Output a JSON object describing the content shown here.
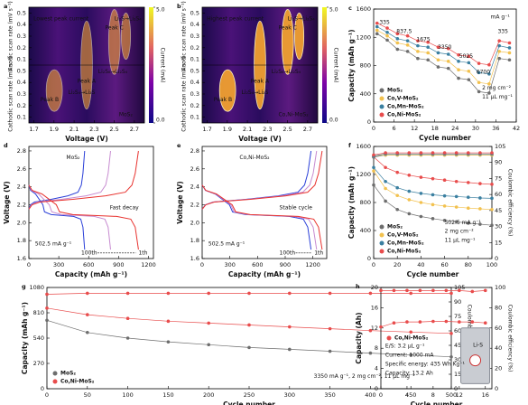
{
  "chart_data": [
    {
      "type": "heatmap",
      "label": "a",
      "xlabel": "Voltage (V)",
      "ylabels": [
        "Anodic scan rate (mV s⁻¹)",
        "Cathodic scan rate (mV s⁻¹)"
      ],
      "xlim": [
        1.65,
        2.8
      ],
      "xticks": [
        1.7,
        1.9,
        2.1,
        2.3,
        2.5,
        2.7
      ],
      "ylim": [
        0.05,
        0.55
      ],
      "yticks": [
        0.1,
        0.2,
        0.3,
        0.4,
        0.5
      ],
      "clim": [
        0,
        5
      ],
      "cticks": [
        {
          "value": 0,
          "label": "0.0"
        },
        {
          "value": 5,
          "label": "5.0"
        }
      ],
      "clabel": "Current (mA)",
      "annotations": [
        "Lowest peak current",
        "Peak C",
        "Peak A",
        "Peak B",
        "MoS₂",
        "Li₂S→Li₂S₄",
        "Li₂S₄→Li₂S",
        "Li₂S₈→Li₂S₄"
      ]
    },
    {
      "type": "heatmap",
      "label": "b",
      "xlabel": "Voltage (V)",
      "ylabels": [
        "Anodic scan rate (mV s⁻¹)",
        "Cathodic scan rate (mV s⁻¹)"
      ],
      "xlim": [
        1.65,
        2.8
      ],
      "xticks": [
        1.7,
        1.9,
        2.1,
        2.3,
        2.5,
        2.7
      ],
      "ylim": [
        0.05,
        0.55
      ],
      "yticks": [
        0.1,
        0.2,
        0.3,
        0.4,
        0.5
      ],
      "clim": [
        0,
        5
      ],
      "cticks": [
        {
          "value": 0,
          "label": "0.0"
        },
        {
          "value": 5,
          "label": "5.0"
        }
      ],
      "clabel": "Current (mA)",
      "annotations": [
        "Highest peak current",
        "Peak C",
        "Peak A",
        "Peak B",
        "Co,Ni-MoS₂",
        "Li₂S→Li₂S₄",
        "Li₂S₄→Li₂S",
        "Li₂S₈→Li₂S₄"
      ]
    },
    {
      "type": "line",
      "label": "c",
      "markers": true,
      "legend": "lower left",
      "xlabel": "Cycle number",
      "ylabel": "Capacity (mAh g⁻¹)",
      "xlim": [
        0,
        42
      ],
      "xticks": [
        0,
        6,
        12,
        18,
        24,
        30,
        36,
        42
      ],
      "ylim": [
        0,
        1600
      ],
      "yticks": [
        0,
        400,
        800,
        1200,
        1600
      ],
      "x": [
        1,
        4,
        7,
        10,
        13,
        16,
        19,
        22,
        25,
        28,
        31,
        34,
        37,
        40
      ],
      "series": [
        {
          "name": "MoS₂",
          "color": "#6d6d6d",
          "values": [
            1250,
            1160,
            1030,
            1000,
            900,
            880,
            780,
            760,
            620,
            600,
            430,
            410,
            900,
            880
          ]
        },
        {
          "name": "Co,V-MoS₂",
          "color": "#f2c14e",
          "values": [
            1300,
            1220,
            1120,
            1090,
            1000,
            980,
            880,
            860,
            740,
            720,
            560,
            540,
            1000,
            980
          ]
        },
        {
          "name": "Co,Mn-MoS₂",
          "color": "#3a7fa0",
          "values": [
            1350,
            1270,
            1180,
            1150,
            1080,
            1060,
            980,
            960,
            860,
            840,
            700,
            680,
            1080,
            1050
          ]
        },
        {
          "name": "Co,Ni-MoS₂",
          "color": "#e84c4c",
          "values": [
            1400,
            1330,
            1250,
            1220,
            1150,
            1130,
            1060,
            1040,
            950,
            930,
            830,
            810,
            1150,
            1120
          ]
        }
      ],
      "annotations": [
        "335",
        "837.5",
        "1675",
        "3350",
        "5025",
        "6700",
        "335",
        "mA g⁻¹",
        "2 mg cm⁻²",
        "11 μL mg⁻¹"
      ]
    },
    {
      "type": "line",
      "label": "d",
      "xlabel": "Capacity (mAh g⁻¹)",
      "ylabel": "Voltage (V)",
      "xlim": [
        0,
        1250
      ],
      "xticks": [
        0,
        300,
        600,
        900,
        1200
      ],
      "ylim": [
        1.6,
        2.85
      ],
      "yticks": [
        1.6,
        1.8,
        {
          "value": 2,
          "label": "2.0"
        },
        2.2,
        2.4,
        2.6,
        2.8
      ],
      "series": [
        {
          "color": "#2a3fd8",
          "x": [
            0,
            17,
            67,
            140,
            157,
            224,
            336,
            448,
            521,
            543,
            560
          ],
          "values": [
            2.42,
            2.36,
            2.32,
            2.2,
            2.12,
            2.09,
            2.08,
            2.07,
            2.04,
            1.95,
            1.7
          ]
        },
        {
          "color": "#2a3fd8",
          "x": [
            0,
            17,
            56,
            224,
            392,
            493,
            526,
            543,
            560
          ],
          "values": [
            2.15,
            2.2,
            2.23,
            2.26,
            2.3,
            2.34,
            2.42,
            2.55,
            2.8
          ]
        },
        {
          "color": "#c78bd0",
          "x": [
            0,
            25,
            98,
            205,
            230,
            328,
            492,
            656,
            763,
            795,
            820
          ],
          "values": [
            2.42,
            2.36,
            2.32,
            2.2,
            2.12,
            2.09,
            2.08,
            2.07,
            2.04,
            1.95,
            1.7
          ]
        },
        {
          "color": "#c78bd0",
          "x": [
            0,
            25,
            82,
            328,
            574,
            722,
            771,
            795,
            820
          ],
          "values": [
            2.15,
            2.2,
            2.23,
            2.26,
            2.3,
            2.34,
            2.42,
            2.55,
            2.8
          ]
        },
        {
          "color": "#e8322e",
          "x": [
            0,
            33,
            132,
            275,
            308,
            440,
            660,
            880,
            1023,
            1067,
            1100
          ],
          "values": [
            2.42,
            2.36,
            2.32,
            2.2,
            2.12,
            2.09,
            2.08,
            2.07,
            2.04,
            1.95,
            1.7
          ]
        },
        {
          "color": "#e8322e",
          "x": [
            0,
            33,
            110,
            440,
            770,
            968,
            1034,
            1067,
            1100
          ],
          "values": [
            2.15,
            2.2,
            2.23,
            2.26,
            2.3,
            2.34,
            2.42,
            2.55,
            2.8
          ]
        }
      ],
      "annotations": [
        "MoS₂",
        "Fast decay",
        "502.5 mA g⁻¹",
        "100th",
        "1th"
      ]
    },
    {
      "type": "line",
      "label": "e",
      "xlabel": "Capacity (mAh g⁻¹)",
      "ylabel": "Voltage (V)",
      "xlim": [
        0,
        1350
      ],
      "xticks": [
        0,
        300,
        600,
        900,
        1200
      ],
      "ylim": [
        1.6,
        2.85
      ],
      "yticks": [
        1.6,
        1.8,
        {
          "value": 2,
          "label": "2.0"
        },
        2.2,
        2.4,
        2.6,
        2.8
      ],
      "series": [
        {
          "color": "#2a3fd8",
          "x": [
            0,
            35,
            142,
            295,
            330,
            472,
            708,
            944,
            1097,
            1145,
            1180
          ],
          "values": [
            2.42,
            2.36,
            2.32,
            2.2,
            2.12,
            2.09,
            2.08,
            2.07,
            2.04,
            1.95,
            1.7
          ]
        },
        {
          "color": "#2a3fd8",
          "x": [
            0,
            35,
            118,
            472,
            826,
            1038,
            1109,
            1145,
            1180
          ],
          "values": [
            2.15,
            2.2,
            2.23,
            2.26,
            2.3,
            2.34,
            2.42,
            2.55,
            2.8
          ]
        },
        {
          "color": "#c78bd0",
          "x": [
            0,
            37,
            149,
            310,
            347,
            496,
            744,
            992,
            1153,
            1203,
            1240
          ],
          "values": [
            2.42,
            2.36,
            2.32,
            2.2,
            2.12,
            2.09,
            2.08,
            2.07,
            2.04,
            1.95,
            1.7
          ]
        },
        {
          "color": "#c78bd0",
          "x": [
            0,
            37,
            124,
            496,
            868,
            1091,
            1166,
            1203,
            1240
          ],
          "values": [
            2.15,
            2.2,
            2.23,
            2.26,
            2.3,
            2.34,
            2.42,
            2.55,
            2.8
          ]
        },
        {
          "color": "#e8322e",
          "x": [
            0,
            39,
            156,
            325,
            364,
            520,
            780,
            1040,
            1209,
            1261,
            1300
          ],
          "values": [
            2.42,
            2.36,
            2.32,
            2.2,
            2.12,
            2.09,
            2.08,
            2.07,
            2.04,
            1.95,
            1.7
          ]
        },
        {
          "color": "#e8322e",
          "x": [
            0,
            39,
            130,
            520,
            910,
            1144,
            1222,
            1261,
            1300
          ],
          "values": [
            2.15,
            2.2,
            2.23,
            2.26,
            2.3,
            2.34,
            2.42,
            2.55,
            2.8
          ]
        }
      ],
      "annotations": [
        "Co,Ni-MoS₂",
        "Stable cycle",
        "502.5 mA g⁻¹",
        "100th",
        "1th"
      ]
    },
    {
      "type": "line",
      "label": "f",
      "markers": true,
      "legend": "lower left",
      "xlabel": "Cycle number",
      "ylabel": "Capacity (mAh g⁻¹)",
      "y2label": "Coulombic efficiency (%)",
      "xlim": [
        0,
        100
      ],
      "xticks": [
        0,
        20,
        40,
        60,
        80,
        100
      ],
      "ylim": [
        0,
        1600
      ],
      "yticks": [
        0,
        400,
        800,
        1200,
        1600
      ],
      "y2lim": [
        0,
        105
      ],
      "y2ticks": [
        0,
        15,
        30,
        45,
        60,
        75,
        90,
        105
      ],
      "x": [
        0,
        10,
        20,
        30,
        40,
        50,
        60,
        70,
        80,
        90,
        100
      ],
      "series": [
        {
          "name": "MoS₂",
          "color": "#6d6d6d",
          "values": [
            1050,
            820,
            700,
            640,
            600,
            570,
            545,
            525,
            505,
            490,
            475
          ]
        },
        {
          "name": "Co,V-MoS₂",
          "color": "#f2c14e",
          "values": [
            1250,
            1000,
            900,
            840,
            800,
            770,
            750,
            735,
            720,
            710,
            700
          ]
        },
        {
          "name": "Co,Mn-MoS₂",
          "color": "#3a7fa0",
          "values": [
            1300,
            1100,
            1010,
            960,
            930,
            910,
            895,
            885,
            875,
            865,
            860
          ]
        },
        {
          "name": "Co,Ni-MoS₂",
          "color": "#e84c4c",
          "values": [
            1450,
            1300,
            1230,
            1190,
            1160,
            1140,
            1120,
            1100,
            1085,
            1070,
            1060
          ]
        },
        {
          "color": "#6d6d6d",
          "axis": "y2",
          "values": [
            95,
            97,
            97,
            97,
            97,
            97,
            97,
            97,
            97,
            97,
            97
          ]
        },
        {
          "color": "#f2c14e",
          "axis": "y2",
          "values": [
            96,
            97,
            97,
            97,
            97,
            97,
            97,
            97,
            97,
            97,
            97
          ]
        },
        {
          "color": "#3a7fa0",
          "axis": "y2",
          "values": [
            96,
            98,
            98,
            98,
            98,
            98,
            98,
            98,
            98,
            98,
            98
          ]
        },
        {
          "color": "#e84c4c",
          "axis": "y2",
          "values": [
            97,
            99,
            99,
            99,
            99,
            99,
            99,
            99,
            99,
            99,
            99
          ]
        }
      ],
      "annotations": [
        "502.5 mA g⁻¹",
        "2 mg cm⁻²",
        "11 μL mg⁻¹"
      ]
    },
    {
      "type": "line",
      "label": "g",
      "markers": true,
      "legend": "lower left",
      "xlabel": "Cycle number",
      "ylabel": "Capacity (mAh g⁻¹)",
      "y2label": "Coulombic efficiency (%)",
      "xlim": [
        0,
        500
      ],
      "xticks": [
        0,
        50,
        100,
        150,
        200,
        250,
        300,
        350,
        400,
        450,
        500
      ],
      "ylim": [
        0,
        1080
      ],
      "yticks": [
        0,
        270,
        540,
        810,
        1080
      ],
      "y2lim": [
        0,
        105
      ],
      "y2ticks": [
        0,
        15,
        30,
        45,
        60,
        75,
        90,
        105
      ],
      "x": [
        0,
        50,
        100,
        150,
        200,
        250,
        300,
        350,
        400,
        450,
        500
      ],
      "series": [
        {
          "name": "MoS₂",
          "color": "#6d6d6d",
          "values": [
            730,
            600,
            540,
            500,
            470,
            440,
            420,
            400,
            380,
            360,
            340
          ]
        },
        {
          "name": "Co,Ni-MoS₂",
          "color": "#e84c4c",
          "values": [
            860,
            790,
            750,
            720,
            700,
            680,
            660,
            640,
            620,
            605,
            590
          ]
        },
        {
          "color": "#e84c4c",
          "axis": "y2",
          "values": [
            98,
            99,
            99,
            99,
            99,
            99,
            99,
            99,
            99,
            99,
            99
          ]
        }
      ],
      "annotations": [
        "3350 mA g⁻¹, 2 mg cm⁻², 11 μL mg⁻¹"
      ]
    },
    {
      "type": "line",
      "label": "h",
      "markers": true,
      "legend": "center left",
      "xlabel": "Cycle number",
      "ylabel": "Capacity (Ah)",
      "y2label": "Coulombic efficiency (%)",
      "xlim": [
        0,
        17
      ],
      "xticks": [
        0,
        4,
        8,
        12,
        16
      ],
      "ylim": [
        0,
        20
      ],
      "yticks": [
        0,
        4,
        8,
        12,
        16,
        20
      ],
      "y2lim": [
        0,
        100
      ],
      "y2ticks": [
        0,
        20,
        40,
        60,
        80,
        100
      ],
      "x": [
        0,
        2,
        4,
        6,
        8,
        10,
        12,
        14,
        16
      ],
      "series": [
        {
          "name": "Co,Ni-MoS₂",
          "color": "#e84c4c",
          "values": [
            12.2,
            13.0,
            13.2,
            13.2,
            13.3,
            13.3,
            13.2,
            13.2,
            13.0
          ]
        },
        {
          "color": "#e84c4c",
          "axis": "y2",
          "values": [
            97,
            97,
            97,
            97,
            97,
            97,
            97,
            96,
            97
          ]
        }
      ],
      "annotations": [
        "E/S: 3.2 μL g⁻¹",
        "Current: 1000 mA",
        "Specific energy: 435 Wh Kg⁻¹",
        "Capacity: 13.2 Ah",
        "Li-S"
      ]
    }
  ]
}
